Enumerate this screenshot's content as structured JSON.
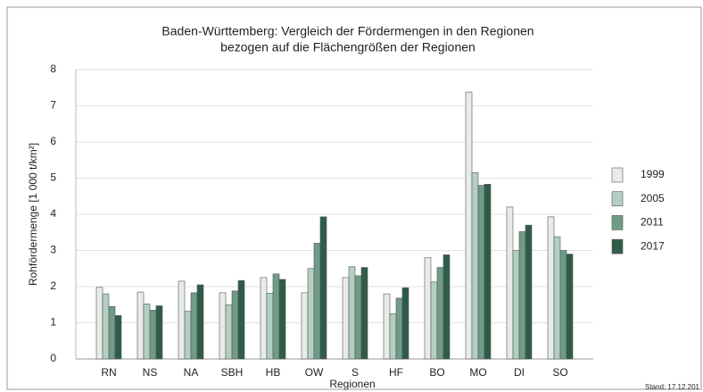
{
  "chart_data": {
    "type": "bar",
    "title": [
      "Baden-Württemberg: Vergleich der Fördermengen in den Regionen",
      "bezogen auf die Flächengrößen der Regionen"
    ],
    "x_label": "Regionen",
    "y_label": "Rohfördermenge [1 000 t/km²]",
    "note": "Stand: 17.12.201",
    "categories": [
      "RN",
      "NS",
      "NA",
      "SBH",
      "HB",
      "OW",
      "S",
      "HF",
      "BO",
      "MO",
      "DI",
      "SO"
    ],
    "series": [
      {
        "name": "1999",
        "color": "#e8ece9",
        "values": [
          1.98,
          1.85,
          2.15,
          1.83,
          2.25,
          1.83,
          2.25,
          1.8,
          2.8,
          7.38,
          4.2,
          3.93
        ]
      },
      {
        "name": "2005",
        "color": "#b3cfc3",
        "values": [
          1.8,
          1.52,
          1.32,
          1.5,
          1.82,
          2.5,
          2.55,
          1.25,
          2.13,
          5.15,
          3.0,
          3.38
        ]
      },
      {
        "name": "2011",
        "color": "#6f9c87",
        "values": [
          1.45,
          1.35,
          1.83,
          1.88,
          2.35,
          3.2,
          2.3,
          1.68,
          2.53,
          4.8,
          3.52,
          3.0
        ]
      },
      {
        "name": "2017",
        "color": "#2f5c48",
        "values": [
          1.2,
          1.47,
          2.05,
          2.17,
          2.2,
          3.93,
          2.53,
          1.97,
          2.88,
          4.83,
          3.7,
          2.9
        ]
      }
    ],
    "ylim": [
      0,
      8
    ],
    "yticks": [
      0,
      1,
      2,
      3,
      4,
      5,
      6,
      7,
      8
    ],
    "grid": true,
    "legend": "right"
  }
}
